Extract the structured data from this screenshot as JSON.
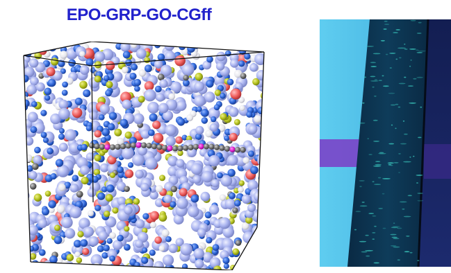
{
  "figure": {
    "title": "EPO-GRP-GO-CGff"
  },
  "colors": {
    "title": "#2222cc",
    "atom_lavender": "#aab4f0",
    "atom_blue": "#2f66d8",
    "atom_red": "#f06060",
    "atom_yellow_green": "#b4c21e",
    "atom_gray": "#6e6e6e",
    "atom_magenta": "#e020d0",
    "photo_background": "#55c4ea",
    "photo_purple_band": "#7a44c8",
    "photo_strip": "#0b3550",
    "photo_fluorescence": "#3fd6c8"
  },
  "icons": {
    "simulation": "molecular-dynamics-cube",
    "photo": "fluorescence-sample-photo"
  }
}
